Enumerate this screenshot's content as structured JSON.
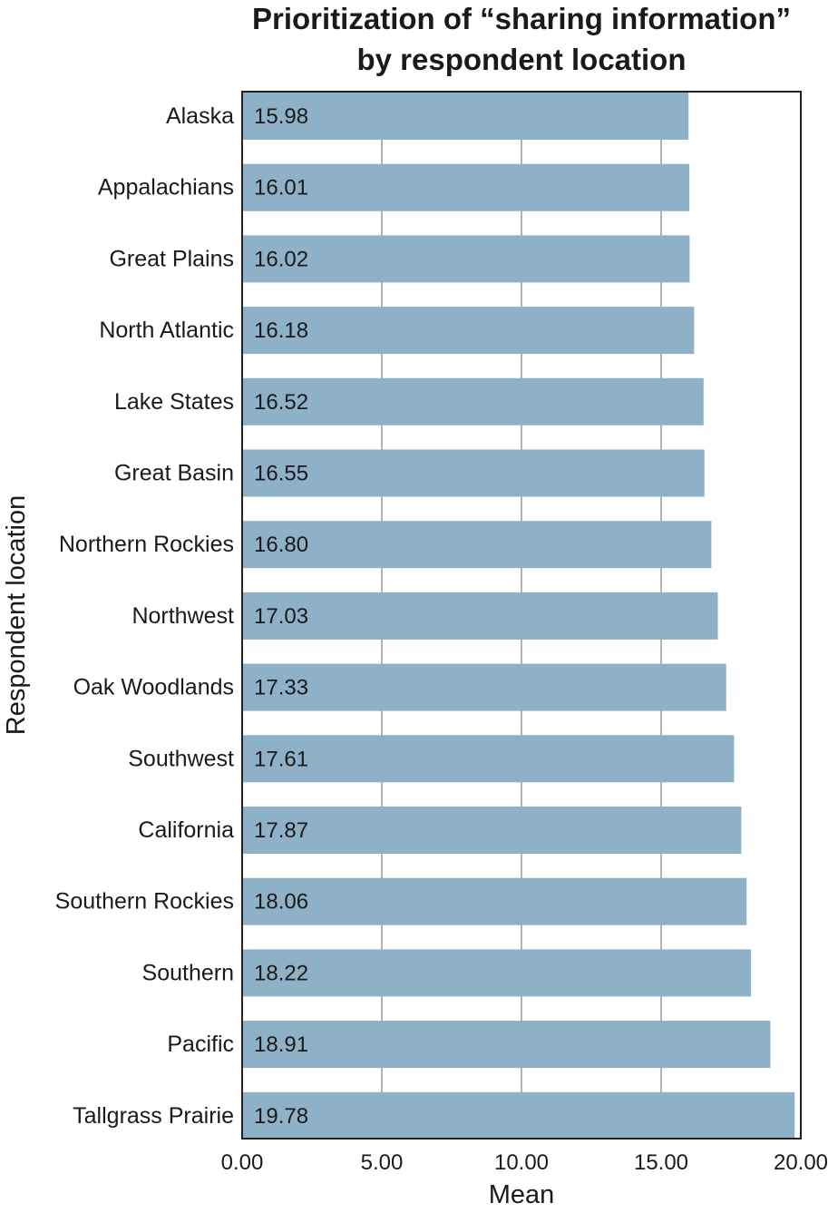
{
  "chart_data": {
    "type": "bar",
    "orientation": "horizontal",
    "title_lines": [
      "Prioritization of “sharing information”",
      "by respondent location"
    ],
    "xlabel": "Mean",
    "ylabel": "Respondent location",
    "xlim": [
      0,
      20
    ],
    "xticks": [
      0,
      5,
      10,
      15,
      20
    ],
    "xtick_labels": [
      "0.00",
      "5.00",
      "10.00",
      "15.00",
      "20.00"
    ],
    "categories": [
      "Alaska",
      "Appalachians",
      "Great Plains",
      "North Atlantic",
      "Lake States",
      "Great Basin",
      "Northern Rockies",
      "Northwest",
      "Oak Woodlands",
      "Southwest",
      "California",
      "Southern Rockies",
      "Southern",
      "Pacific",
      "Tallgrass Prairie"
    ],
    "values": [
      15.98,
      16.01,
      16.02,
      16.18,
      16.52,
      16.55,
      16.8,
      17.03,
      17.33,
      17.61,
      17.87,
      18.06,
      18.22,
      18.91,
      19.78
    ],
    "value_labels": [
      "15.98",
      "16.01",
      "16.02",
      "16.18",
      "16.52",
      "16.55",
      "16.80",
      "17.03",
      "17.33",
      "17.61",
      "17.87",
      "18.06",
      "18.22",
      "18.91",
      "19.78"
    ],
    "bar_color": "#8eb1c7",
    "grid": true
  }
}
